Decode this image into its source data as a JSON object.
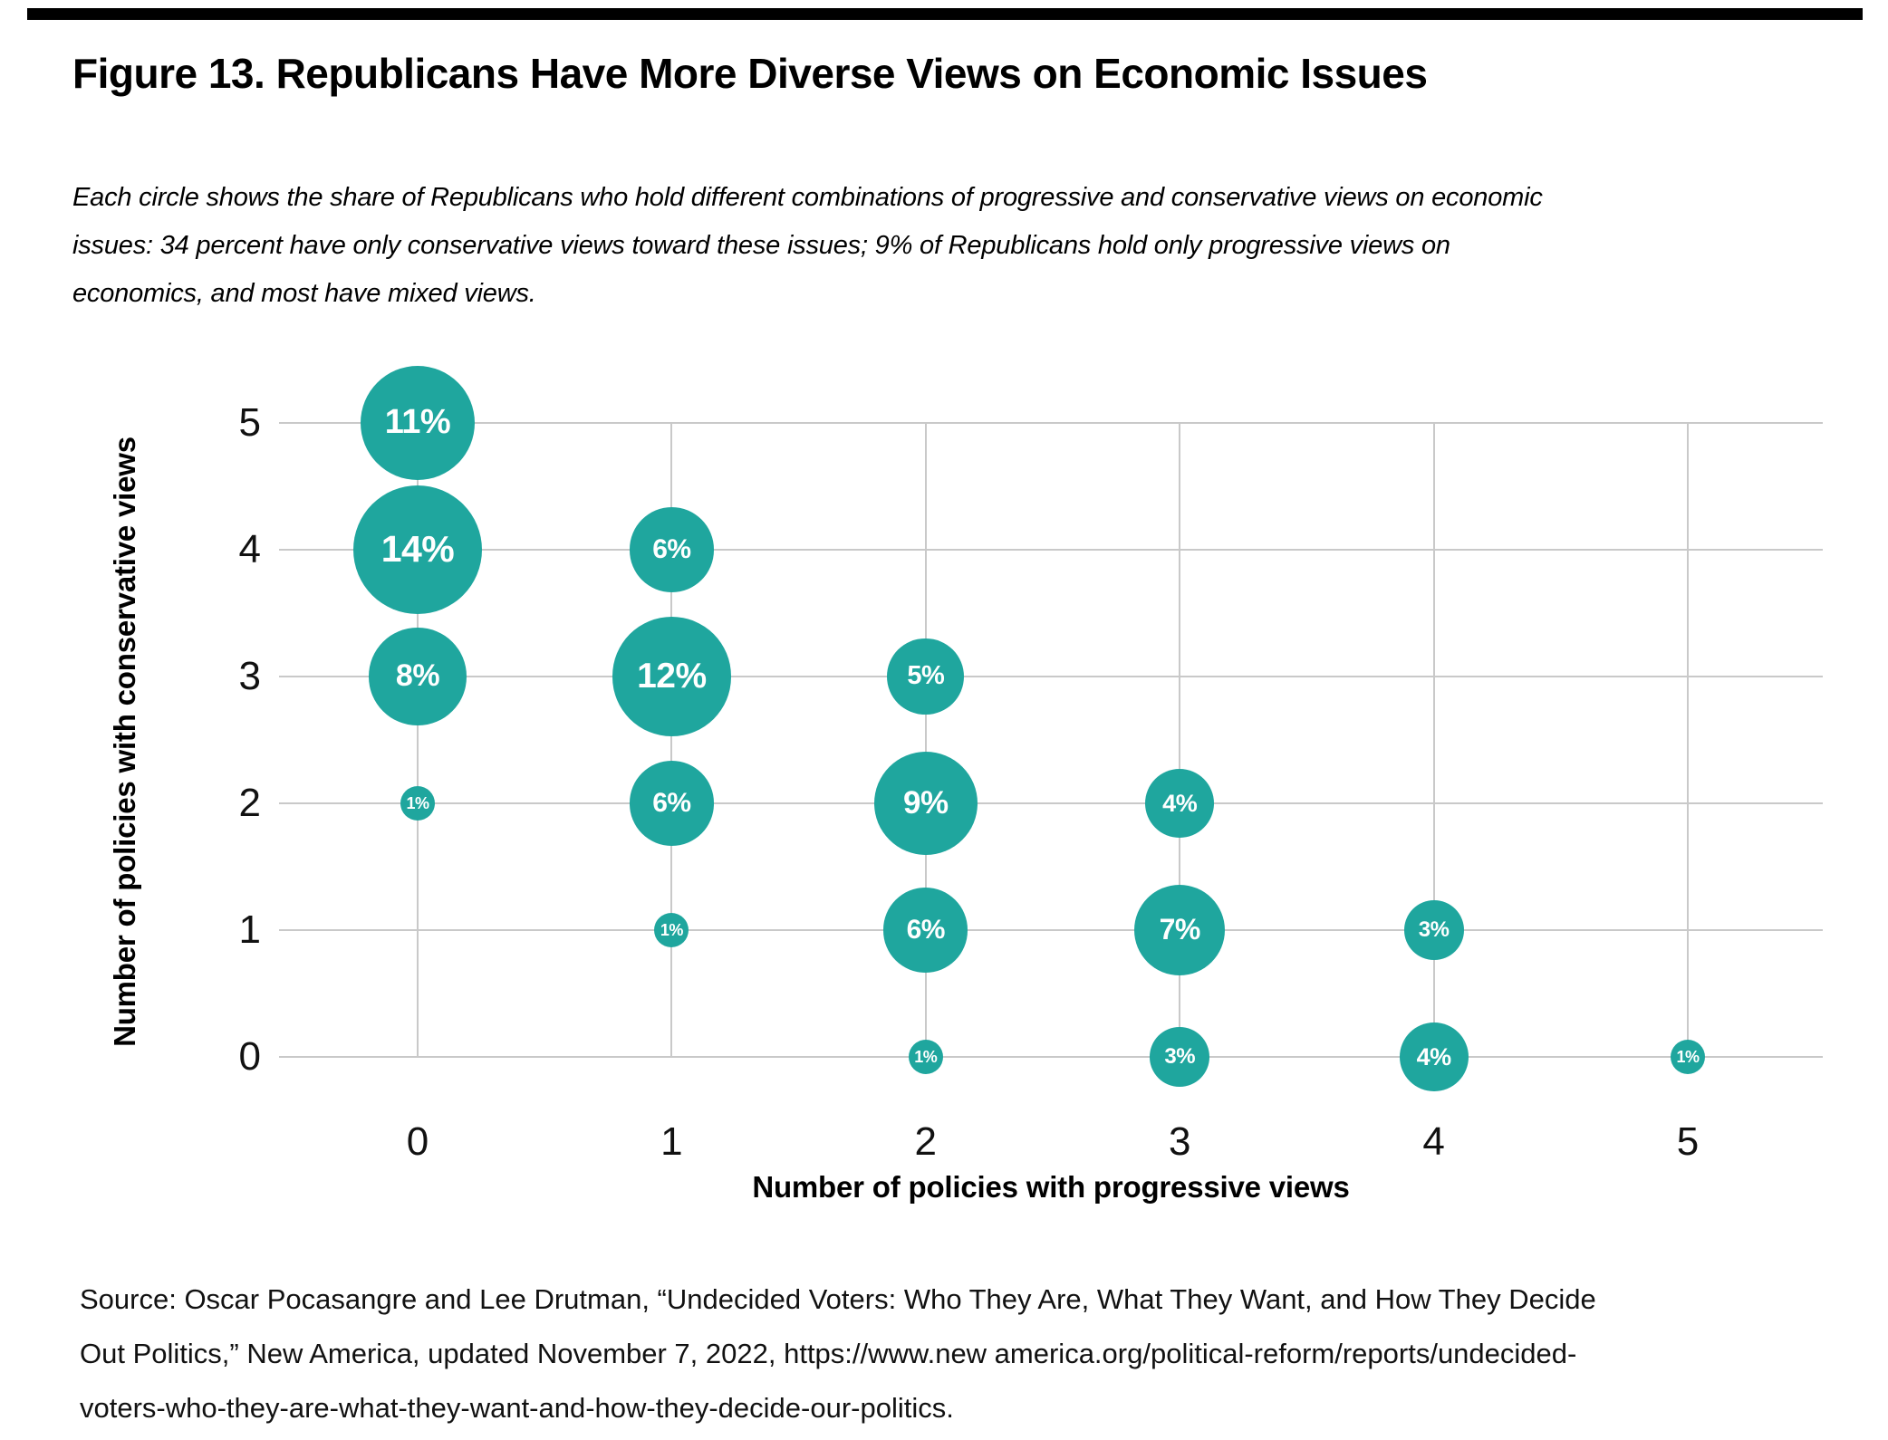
{
  "figure": {
    "title": "Figure 13. Republicans Have More Diverse Views on Economic Issues",
    "subtitle_lines": [
      "Each circle shows the share of Republicans who hold different combinations of progressive and conservative views on economic",
      "issues: 34 percent have only conservative views toward these issues; 9% of Republicans hold only progressive views on",
      "economics, and most have mixed views."
    ],
    "source_lines": [
      "Source: Oscar Pocasangre and Lee Drutman, “Undecided Voters: Who They Are, What They Want, and How They Decide",
      "Out Politics,” New America, updated November 7, 2022, https://www.new america.org/political-reform/reports/undecided-",
      "voters-who-they-are-what-they-want-and-how-they-decide-our-politics."
    ]
  },
  "chart_data": {
    "type": "scatter",
    "subtype": "bubble",
    "title": "Figure 13. Republicans Have More Diverse Views on Economic Issues",
    "xlabel": "Number of policies with progressive views",
    "ylabel": "Number of policies with conservative views",
    "x_ticks": [
      0,
      1,
      2,
      3,
      4,
      5
    ],
    "y_ticks": [
      5,
      4,
      3,
      2,
      1,
      0
    ],
    "xlim": [
      0,
      5
    ],
    "ylim": [
      0,
      5
    ],
    "grid": true,
    "legend": false,
    "bubble_color": "#1FA69E",
    "bubble_label_color": "#ffffff",
    "grid_color": "#c9c9c9",
    "size_note": "bubble area proportional to percent value",
    "points": [
      {
        "x": 0,
        "y": 5,
        "value": 11,
        "label": "11%"
      },
      {
        "x": 0,
        "y": 4,
        "value": 14,
        "label": "14%"
      },
      {
        "x": 0,
        "y": 3,
        "value": 8,
        "label": "8%"
      },
      {
        "x": 0,
        "y": 2,
        "value": 1,
        "label": "1%"
      },
      {
        "x": 1,
        "y": 4,
        "value": 6,
        "label": "6%"
      },
      {
        "x": 1,
        "y": 3,
        "value": 12,
        "label": "12%"
      },
      {
        "x": 1,
        "y": 2,
        "value": 6,
        "label": "6%"
      },
      {
        "x": 1,
        "y": 1,
        "value": 1,
        "label": "1%"
      },
      {
        "x": 2,
        "y": 3,
        "value": 5,
        "label": "5%"
      },
      {
        "x": 2,
        "y": 2,
        "value": 9,
        "label": "9%"
      },
      {
        "x": 2,
        "y": 1,
        "value": 6,
        "label": "6%"
      },
      {
        "x": 2,
        "y": 0,
        "value": 1,
        "label": "1%"
      },
      {
        "x": 3,
        "y": 2,
        "value": 4,
        "label": "4%"
      },
      {
        "x": 3,
        "y": 1,
        "value": 7,
        "label": "7%"
      },
      {
        "x": 3,
        "y": 0,
        "value": 3,
        "label": "3%"
      },
      {
        "x": 4,
        "y": 1,
        "value": 3,
        "label": "3%"
      },
      {
        "x": 4,
        "y": 0,
        "value": 4,
        "label": "4%"
      },
      {
        "x": 5,
        "y": 0,
        "value": 1,
        "label": "1%"
      }
    ]
  }
}
